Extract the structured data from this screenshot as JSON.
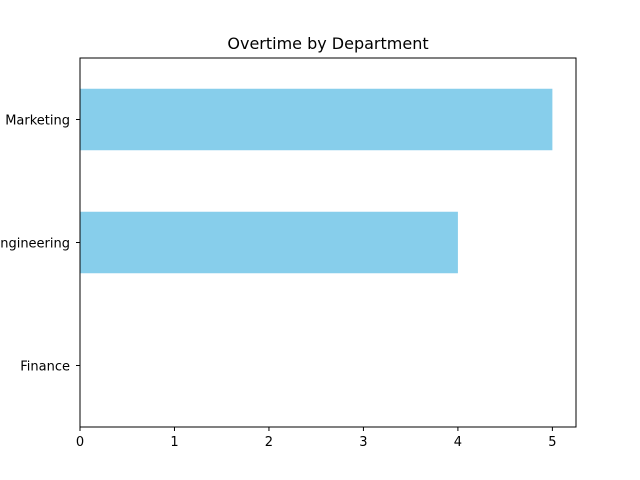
{
  "chart_data": {
    "type": "bar",
    "orientation": "horizontal",
    "title": "Overtime by Department",
    "xlabel": "",
    "ylabel": "",
    "categories": [
      "Finance",
      "Engineering",
      "Marketing"
    ],
    "values": [
      0,
      4,
      5
    ],
    "xlim": [
      0,
      5.25
    ],
    "xticks": [
      "0",
      "1",
      "2",
      "3",
      "4",
      "5"
    ],
    "bar_color": "#87ceeb",
    "grid": false,
    "legend": "none"
  }
}
